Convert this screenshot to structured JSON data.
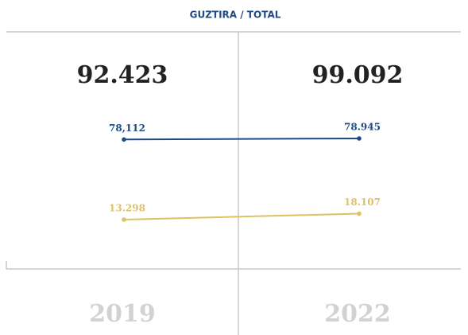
{
  "chart_data": {
    "type": "line",
    "title": "GUZTIRA / TOTAL",
    "categories": [
      "2019",
      "2022"
    ],
    "totals": {
      "values": [
        92423,
        99092
      ],
      "value_labels": [
        "92.423",
        "99.092"
      ]
    },
    "series": [
      {
        "color": "#1d4a86",
        "values": [
          78112,
          78945
        ],
        "value_labels": [
          "78,112",
          "78.945"
        ]
      },
      {
        "color": "#dcc264",
        "values": [
          13298,
          18107
        ],
        "value_labels": [
          "13.298",
          "18.107"
        ]
      }
    ]
  }
}
